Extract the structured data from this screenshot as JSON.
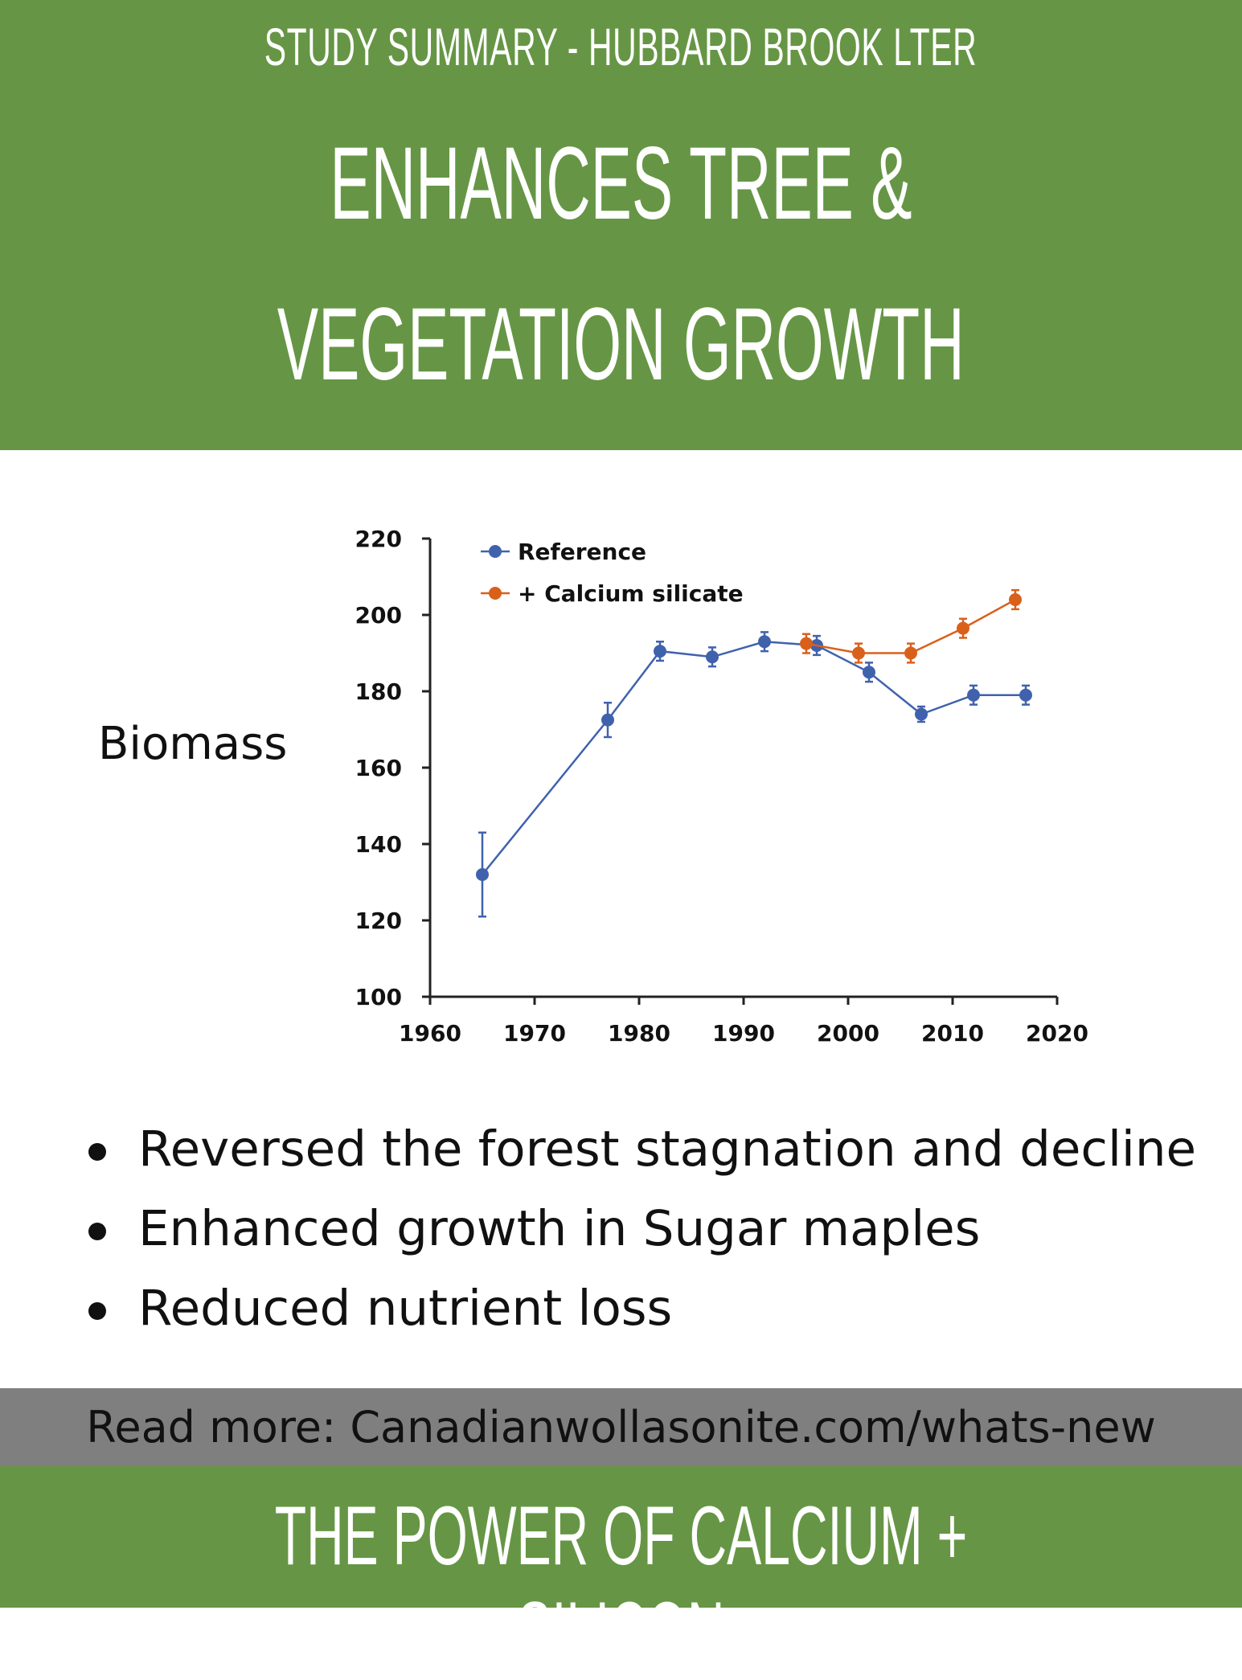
{
  "header": {
    "subtitle": "STUDY SUMMARY - HUBBARD BROOK LTER",
    "title_line1": "ENHANCES TREE &",
    "title_line2": "VEGETATION GROWTH",
    "color": "#669645"
  },
  "side_label": "Biomass",
  "chart_data": {
    "type": "line",
    "title": "",
    "xlabel": "",
    "ylabel": "Biomass",
    "xlim": [
      1960,
      2020
    ],
    "ylim": [
      100,
      220
    ],
    "xticks": [
      "1960",
      "1970",
      "1980",
      "1990",
      "2000",
      "2010",
      "2020"
    ],
    "yticks": [
      "100",
      "120",
      "140",
      "160",
      "180",
      "200",
      "220"
    ],
    "legend_position": "top-left",
    "grid": false,
    "error_bars": true,
    "series": [
      {
        "name": "Reference",
        "color": "#4062ad",
        "x": [
          1965,
          1977,
          1982,
          1987,
          1992,
          1997,
          2002,
          2007,
          2012,
          2017
        ],
        "y": [
          132,
          172.5,
          190.5,
          189,
          193,
          192,
          185,
          174,
          179,
          179
        ],
        "err": [
          11,
          4.5,
          2.5,
          2.5,
          2.5,
          2.5,
          2.5,
          2,
          2.5,
          2.5
        ]
      },
      {
        "name": "+ Calcium silicate",
        "color": "#d9601b",
        "x": [
          1996,
          2001,
          2006,
          2011,
          2016
        ],
        "y": [
          192.5,
          190,
          190,
          196.5,
          204
        ],
        "err": [
          2.5,
          2.5,
          2.5,
          2.5,
          2.5
        ]
      }
    ]
  },
  "bullets": [
    "Reversed the forest stagnation and decline",
    "Enhanced growth in Sugar maples",
    "Reduced nutrient loss"
  ],
  "read_more": "Read more: Canadianwollasonite.com/whats-new",
  "footer": "THE POWER OF CALCIUM + SILICON"
}
